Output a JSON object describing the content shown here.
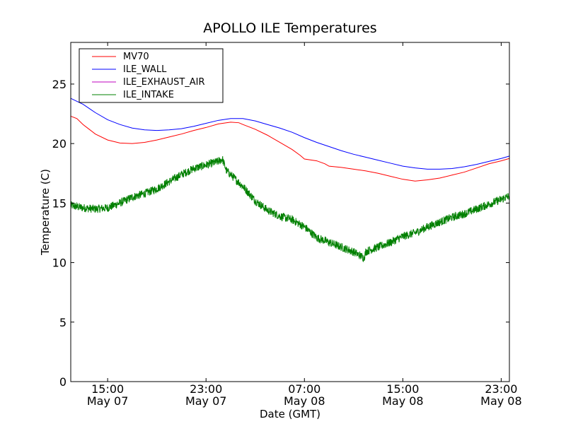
{
  "chart_data": {
    "type": "line",
    "title": "APOLLO ILE Temperatures",
    "xlabel": "Date (GMT)",
    "ylabel": "Temperature (C)",
    "xlim": [
      "2024-05-07 12:00",
      "2024-05-08 23:40"
    ],
    "ylim": [
      0,
      28.5
    ],
    "grid": false,
    "legend_position": "top-left",
    "x_ticks": [
      {
        "at": "2024-05-07 15:00",
        "time": "15:00",
        "date": "May 07"
      },
      {
        "at": "2024-05-07 23:00",
        "time": "23:00",
        "date": "May 07"
      },
      {
        "at": "2024-05-08 07:00",
        "time": "07:00",
        "date": "May 08"
      },
      {
        "at": "2024-05-08 15:00",
        "time": "15:00",
        "date": "May 08"
      },
      {
        "at": "2024-05-08 23:00",
        "time": "23:00",
        "date": "May 08"
      }
    ],
    "y_ticks": [
      "0",
      "5",
      "10",
      "15",
      "20",
      "25"
    ],
    "series": [
      {
        "name": "MV70",
        "color": "#ff0000",
        "x": [
          "2024-05-07 12:00",
          "2024-05-07 12:30",
          "2024-05-07 13:00",
          "2024-05-07 14:00",
          "2024-05-07 15:00",
          "2024-05-07 16:00",
          "2024-05-07 17:00",
          "2024-05-07 18:00",
          "2024-05-07 19:00",
          "2024-05-07 20:00",
          "2024-05-07 21:00",
          "2024-05-07 22:00",
          "2024-05-07 23:00",
          "2024-05-08 00:00",
          "2024-05-08 01:00",
          "2024-05-08 01:40",
          "2024-05-08 02:00",
          "2024-05-08 03:00",
          "2024-05-08 04:00",
          "2024-05-08 05:00",
          "2024-05-08 06:00",
          "2024-05-08 06:40",
          "2024-05-08 07:00",
          "2024-05-08 08:00",
          "2024-05-08 08:40",
          "2024-05-08 09:00",
          "2024-05-08 10:00",
          "2024-05-08 11:00",
          "2024-05-08 12:00",
          "2024-05-08 13:00",
          "2024-05-08 14:00",
          "2024-05-08 15:00",
          "2024-05-08 16:00",
          "2024-05-08 17:00",
          "2024-05-08 18:00",
          "2024-05-08 19:00",
          "2024-05-08 20:00",
          "2024-05-08 21:00",
          "2024-05-08 22:00",
          "2024-05-08 23:00",
          "2024-05-08 23:40"
        ],
        "y": [
          22.3,
          22.1,
          21.6,
          20.8,
          20.3,
          20.05,
          20.0,
          20.1,
          20.3,
          20.55,
          20.8,
          21.1,
          21.35,
          21.65,
          21.8,
          21.75,
          21.6,
          21.2,
          20.7,
          20.1,
          19.5,
          19.0,
          18.7,
          18.55,
          18.3,
          18.1,
          18.0,
          17.85,
          17.7,
          17.5,
          17.25,
          17.0,
          16.85,
          16.95,
          17.1,
          17.35,
          17.6,
          17.95,
          18.3,
          18.55,
          18.75
        ]
      },
      {
        "name": "ILE_WALL",
        "color": "#0000ff",
        "x": [
          "2024-05-07 12:00",
          "2024-05-07 13:00",
          "2024-05-07 14:00",
          "2024-05-07 15:00",
          "2024-05-07 16:00",
          "2024-05-07 17:00",
          "2024-05-07 18:00",
          "2024-05-07 19:00",
          "2024-05-07 20:00",
          "2024-05-07 21:00",
          "2024-05-07 22:00",
          "2024-05-07 23:00",
          "2024-05-08 00:00",
          "2024-05-08 01:00",
          "2024-05-08 02:00",
          "2024-05-08 03:00",
          "2024-05-08 04:00",
          "2024-05-08 05:00",
          "2024-05-08 06:00",
          "2024-05-08 07:00",
          "2024-05-08 08:00",
          "2024-05-08 09:00",
          "2024-05-08 10:00",
          "2024-05-08 11:00",
          "2024-05-08 12:00",
          "2024-05-08 13:00",
          "2024-05-08 14:00",
          "2024-05-08 15:00",
          "2024-05-08 16:00",
          "2024-05-08 17:00",
          "2024-05-08 18:00",
          "2024-05-08 19:00",
          "2024-05-08 20:00",
          "2024-05-08 21:00",
          "2024-05-08 22:00",
          "2024-05-08 23:00",
          "2024-05-08 23:40"
        ],
        "y": [
          23.8,
          23.3,
          22.6,
          22.0,
          21.6,
          21.3,
          21.15,
          21.1,
          21.15,
          21.25,
          21.45,
          21.7,
          21.95,
          22.1,
          22.1,
          21.9,
          21.6,
          21.3,
          20.95,
          20.5,
          20.1,
          19.75,
          19.4,
          19.1,
          18.85,
          18.6,
          18.35,
          18.1,
          17.95,
          17.85,
          17.85,
          17.9,
          18.05,
          18.25,
          18.5,
          18.75,
          18.95
        ]
      },
      {
        "name": "ILE_EXHAUST_AIR",
        "color": "#bf00bf",
        "x": [],
        "y": []
      },
      {
        "name": "ILE_INTAKE",
        "color": "#008000",
        "noise": 0.35,
        "x": [
          "2024-05-07 12:00",
          "2024-05-07 13:00",
          "2024-05-07 14:00",
          "2024-05-07 15:00",
          "2024-05-07 16:00",
          "2024-05-07 17:00",
          "2024-05-07 18:00",
          "2024-05-07 19:00",
          "2024-05-07 20:00",
          "2024-05-07 21:00",
          "2024-05-07 22:00",
          "2024-05-07 23:00",
          "2024-05-08 00:00",
          "2024-05-08 00:20",
          "2024-05-08 00:40",
          "2024-05-08 01:00",
          "2024-05-08 02:00",
          "2024-05-08 03:00",
          "2024-05-08 04:00",
          "2024-05-08 05:00",
          "2024-05-08 06:00",
          "2024-05-08 07:00",
          "2024-05-08 08:00",
          "2024-05-08 09:00",
          "2024-05-08 10:00",
          "2024-05-08 11:00",
          "2024-05-08 11:50",
          "2024-05-08 12:00",
          "2024-05-08 12:10",
          "2024-05-08 13:00",
          "2024-05-08 14:00",
          "2024-05-08 15:00",
          "2024-05-08 16:00",
          "2024-05-08 17:00",
          "2024-05-08 18:00",
          "2024-05-08 19:00",
          "2024-05-08 20:00",
          "2024-05-08 21:00",
          "2024-05-08 22:00",
          "2024-05-08 23:00",
          "2024-05-08 23:40"
        ],
        "y": [
          14.8,
          14.6,
          14.5,
          14.6,
          15.0,
          15.5,
          15.8,
          16.2,
          16.8,
          17.4,
          17.9,
          18.2,
          18.5,
          18.7,
          17.7,
          17.4,
          16.4,
          15.2,
          14.4,
          13.9,
          13.6,
          13.0,
          12.1,
          11.7,
          11.3,
          10.9,
          10.4,
          10.9,
          11.0,
          11.3,
          11.7,
          12.2,
          12.5,
          13.0,
          13.4,
          13.8,
          14.1,
          14.5,
          14.9,
          15.3,
          15.6
        ]
      }
    ]
  }
}
